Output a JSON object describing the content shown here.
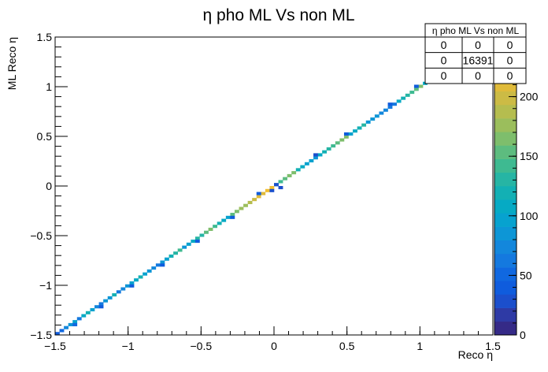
{
  "chart_data": {
    "type": "heatmap",
    "title": "η pho ML Vs non ML",
    "xlabel": "Reco η",
    "ylabel": "ML Reco η",
    "xlim": [
      -1.5,
      1.5
    ],
    "ylim": [
      -1.5,
      1.5
    ],
    "x_ticks": [
      "−1.5",
      "−1",
      "−0.5",
      "0",
      "0.5",
      "1",
      "1.5"
    ],
    "y_ticks": [
      "−1.5",
      "−1",
      "−0.5",
      "0",
      "0.5",
      "1",
      "1.5"
    ],
    "x_tick_values": [
      -1.5,
      -1,
      -0.5,
      0,
      0.5,
      1,
      1.5
    ],
    "y_tick_values": [
      -1.5,
      -1,
      -0.5,
      0,
      0.5,
      1,
      1.5
    ],
    "z_ticks": [
      "0",
      "50",
      "100",
      "150",
      "200"
    ],
    "z_tick_values": [
      0,
      50,
      100,
      150,
      200
    ],
    "zlim": [
      0,
      250
    ],
    "bins": 100,
    "diagonal_counts": [
      40,
      55,
      70,
      85,
      95,
      60,
      110,
      120,
      100,
      75,
      65,
      80,
      90,
      115,
      60,
      70,
      85,
      100,
      110,
      120,
      95,
      80,
      70,
      65,
      90,
      100,
      120,
      130,
      140,
      85,
      95,
      110,
      125,
      135,
      150,
      160,
      140,
      120,
      110,
      100,
      155,
      165,
      175,
      180,
      190,
      200,
      205,
      210,
      220,
      225,
      130,
      140,
      150,
      160,
      170,
      120,
      110,
      100,
      95,
      90,
      110,
      120,
      130,
      140,
      150,
      160,
      170,
      100,
      110,
      120,
      130,
      90,
      85,
      80,
      75,
      70,
      65,
      60,
      110,
      120,
      130,
      140,
      150,
      160,
      110,
      100,
      95,
      90,
      85,
      80,
      120,
      130,
      140,
      150,
      110,
      100,
      90,
      80,
      70,
      60
    ],
    "offdiag": [
      {
        "xbin": 4,
        "ybin": 3,
        "count": 50
      },
      {
        "xbin": 10,
        "ybin": 9,
        "count": 40
      },
      {
        "xbin": 17,
        "ybin": 16,
        "count": 45
      },
      {
        "xbin": 24,
        "ybin": 23,
        "count": 40
      },
      {
        "xbin": 32,
        "ybin": 31,
        "count": 35
      },
      {
        "xbin": 40,
        "ybin": 39,
        "count": 40
      },
      {
        "xbin": 46,
        "ybin": 47,
        "count": 40
      },
      {
        "xbin": 49,
        "ybin": 48,
        "count": 30
      },
      {
        "xbin": 50,
        "ybin": 50,
        "count": 30
      },
      {
        "xbin": 51,
        "ybin": 49,
        "count": 30
      },
      {
        "xbin": 59,
        "ybin": 60,
        "count": 30
      },
      {
        "xbin": 66,
        "ybin": 67,
        "count": 40
      },
      {
        "xbin": 76,
        "ybin": 77,
        "count": 40
      },
      {
        "xbin": 82,
        "ybin": 83,
        "count": 35
      },
      {
        "xbin": 88,
        "ybin": 89,
        "count": 40
      },
      {
        "xbin": 95,
        "ybin": 96,
        "count": 40
      }
    ],
    "stats_box": {
      "title": "η pho ML Vs non ML",
      "rows": [
        [
          "0",
          "0",
          "0"
        ],
        [
          "0",
          "16391",
          "0"
        ],
        [
          "0",
          "0",
          "0"
        ]
      ]
    },
    "colormap": [
      "#352a87",
      "#2e3aa5",
      "#1b4fcc",
      "#0f5cdd",
      "#1068e0",
      "#1479df",
      "#1387dc",
      "#0d96d6",
      "#07a2cf",
      "#06aac4",
      "#13b0b4",
      "#26b5a4",
      "#3eba91",
      "#5dbc7f",
      "#7ebe6c",
      "#9bbe5c",
      "#b5bd4f",
      "#ccbb45",
      "#e0bb3a",
      "#f2be31",
      "#f8cc26",
      "#f9fb0e"
    ]
  }
}
